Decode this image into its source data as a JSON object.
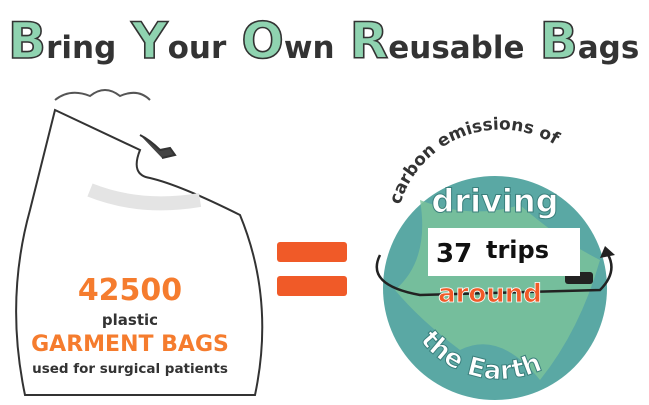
{
  "title": [
    {
      "initial": "B",
      "rest": "ring"
    },
    {
      "initial": "Y",
      "rest": "our"
    },
    {
      "initial": "O",
      "rest": "wn"
    },
    {
      "initial": "R",
      "rest": "eusable"
    },
    {
      "initial": "B",
      "rest": "ags"
    }
  ],
  "bag": {
    "count": 42500,
    "line1": "plastic",
    "line2": "GARMENT BAGS",
    "line3": "used for surgical patients"
  },
  "globe": {
    "arc_top": "carbon emissions of",
    "word1": "driving",
    "trips_number": 37,
    "trips_label": "trips",
    "word2": "around",
    "arc_bottom": "the Earth"
  }
}
